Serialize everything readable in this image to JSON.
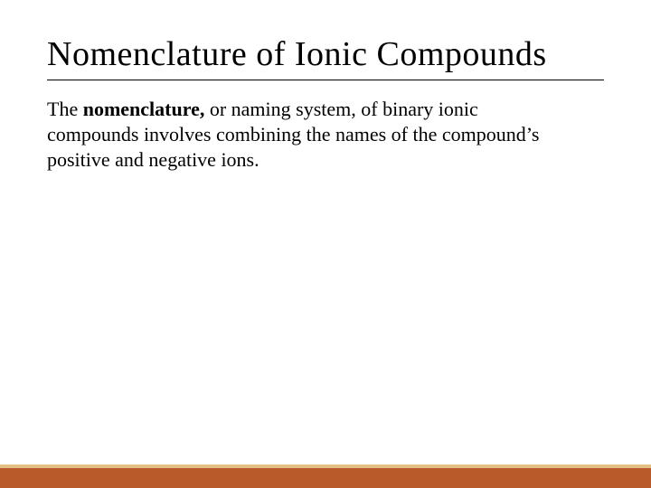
{
  "slide": {
    "title": "Nomenclature of  Ionic Compounds",
    "body_prefix": "The ",
    "body_bold": "nomenclature,",
    "body_suffix": " or naming system, of binary ionic compounds involves combining the names of the compound’s positive and negative ions."
  },
  "style": {
    "background_color": "#ffffff",
    "title_color": "#000000",
    "title_fontsize": 38,
    "title_underline_color": "#000000",
    "body_color": "#000000",
    "body_fontsize": 22,
    "footer_thin_color": "#e2c083",
    "footer_thick_color": "#b85a2a",
    "footer_thin_height": 4,
    "footer_thick_height": 22,
    "font_family": "Georgia, 'Times New Roman', serif"
  }
}
